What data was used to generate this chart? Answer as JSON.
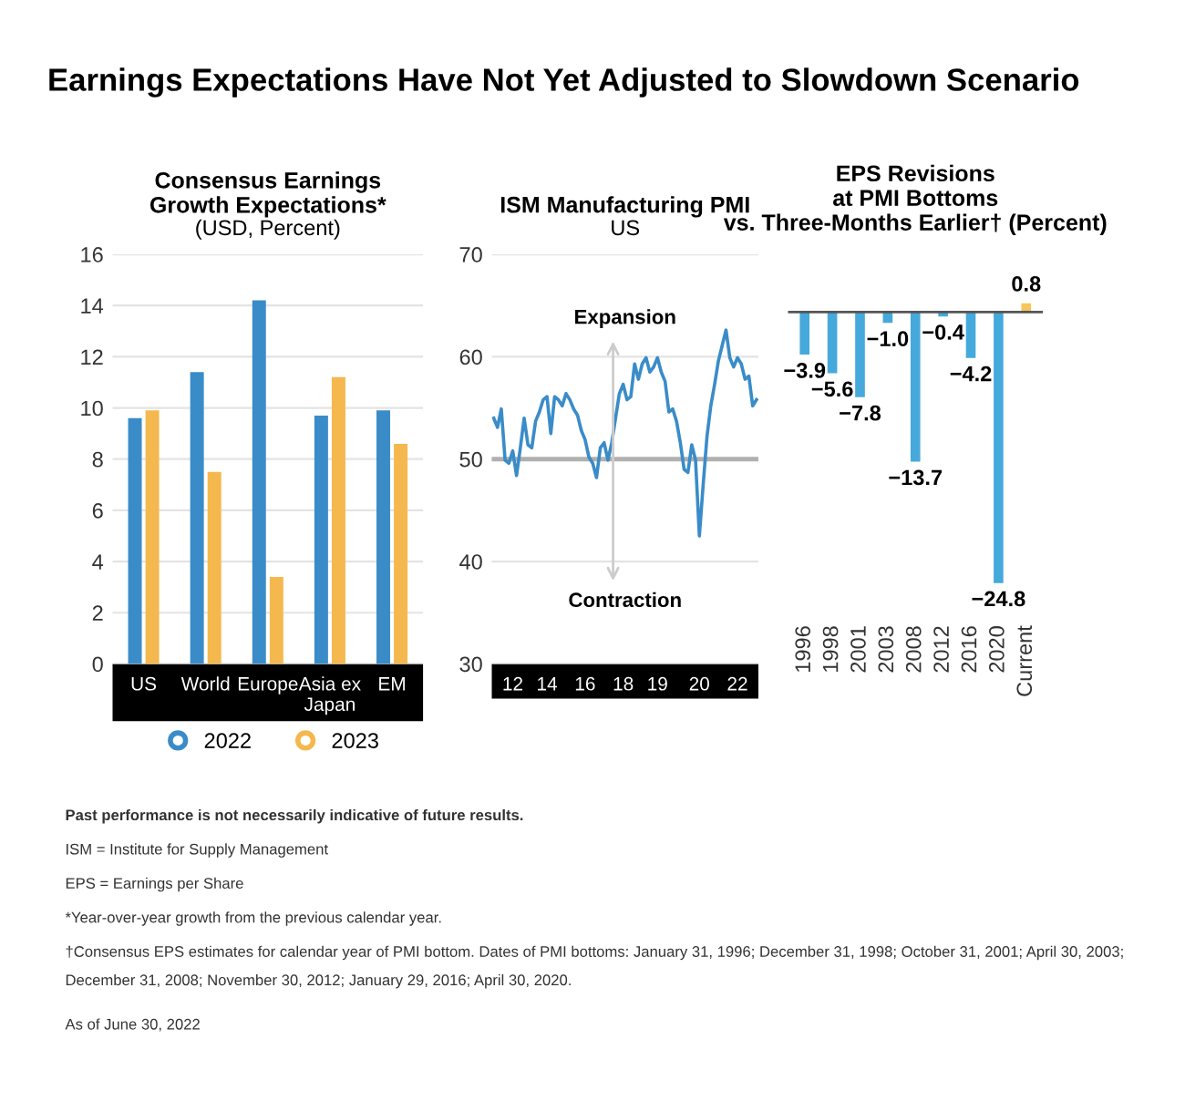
{
  "chart_data": [
    {
      "type": "other",
      "title": "Earnings Expectations Have Not Yet Adjusted to Slowdown Scenario",
      "annotations": [
        "Past performance is not necessarily indicative of future results.",
        "ISM = Institute for Supply Management",
        "EPS = Earnings per Share",
        "*Year-over-year growth from the previous calendar year.",
        "†Consensus EPS estimates for calendar year of PMI bottom. Dates of PMI bottoms: January 31, 1996; December 31, 1998; October 31, 2001; April 30, 2003;\nDecember 31, 2008; November 30, 2012; January 29, 2016; April 30, 2020.",
        "As of June 30, 2022"
      ]
    },
    {
      "type": "bar",
      "title": "Consensus Earnings\nGrowth Expectations*",
      "subtitle": "(USD, Percent)",
      "categories": [
        "US",
        "World",
        "Europe",
        "Asia ex\nJapan",
        "EM"
      ],
      "series": [
        {
          "name": "2022",
          "color": "#3a8cc9",
          "values": [
            9.6,
            11.4,
            14.2,
            9.7,
            9.9
          ]
        },
        {
          "name": "2023",
          "color": "#f5b84f",
          "values": [
            9.9,
            7.5,
            3.4,
            11.2,
            8.6
          ]
        }
      ],
      "ylim": [
        0,
        16
      ],
      "yticks": [
        0,
        2,
        4,
        6,
        8,
        10,
        12,
        14,
        16
      ],
      "grid": "y",
      "legend": "bottom",
      "marker": "circle"
    },
    {
      "type": "line",
      "title": "ISM Manufacturing PMI",
      "subtitle": "US",
      "annotations": [
        "Expansion",
        "Contraction"
      ],
      "categories": [
        null,
        null,
        null,
        null,
        null,
        "12",
        null,
        null,
        null,
        null,
        null,
        null,
        null,
        null,
        "14",
        null,
        null,
        null,
        null,
        null,
        null,
        null,
        null,
        null,
        "16",
        null,
        null,
        null,
        null,
        null,
        null,
        null,
        null,
        null,
        "18",
        null,
        null,
        null,
        null,
        null,
        null,
        null,
        null,
        "19",
        null,
        null,
        null,
        null,
        null,
        null,
        null,
        null,
        null,
        null,
        "20",
        null,
        null,
        null,
        null,
        null,
        null,
        null,
        null,
        null,
        "22",
        null,
        null,
        null,
        null,
        null
      ],
      "series": [
        {
          "color": "#3a8cc9",
          "values": [
            54.0,
            53.1,
            54.9,
            49.9,
            49.6,
            50.8,
            48.4,
            51.1,
            54.0,
            51.4,
            51.1,
            53.7,
            54.6,
            55.8,
            56.1,
            52.5,
            56.1,
            55.8,
            55.2,
            56.4,
            55.8,
            54.9,
            54.3,
            52.8,
            51.9,
            50.2,
            49.6,
            48.2,
            51.1,
            51.6,
            49.9,
            51.6,
            54.0,
            56.4,
            57.3,
            55.8,
            56.1,
            59.3,
            57.8,
            59.3,
            59.9,
            58.5,
            59.0,
            59.9,
            58.5,
            57.6,
            54.6,
            54.9,
            53.7,
            51.6,
            49.0,
            48.7,
            51.4,
            49.9,
            42.5,
            47.5,
            52.2,
            55.2,
            57.3,
            59.6,
            61.1,
            62.6,
            59.9,
            59.0,
            59.9,
            59.3,
            57.8,
            58.1,
            55.2,
            55.8
          ]
        }
      ],
      "ylim": [
        30,
        70
      ],
      "yticks": [
        30,
        40,
        50,
        60,
        70
      ],
      "grid": "y",
      "ref_lines": [
        {
          "axis": "y",
          "value": 50,
          "color": "#b0b0b0"
        }
      ]
    },
    {
      "type": "bar",
      "title": "EPS Revisions\nat PMI Bottoms\nvs. Three-Months Earlier† (Percent)",
      "categories": [
        "1996",
        "1998",
        "2001",
        "2003",
        "2008",
        "2012",
        "2016",
        "2020",
        "Current"
      ],
      "values": [
        -3.9,
        -5.6,
        -7.8,
        -1.0,
        -13.7,
        -0.4,
        -4.2,
        -24.8,
        0.8
      ],
      "colors": [
        "#45a9dc",
        "#45a9dc",
        "#45a9dc",
        "#45a9dc",
        "#45a9dc",
        "#45a9dc",
        "#45a9dc",
        "#45a9dc",
        "#f7c55a"
      ],
      "value_labels": [
        "−3.9",
        "−5.6",
        "−7.8",
        "−1.0",
        "−13.7",
        "−0.4",
        "−4.2",
        "−24.8",
        "0.8"
      ],
      "tick_labels": "x"
    }
  ]
}
